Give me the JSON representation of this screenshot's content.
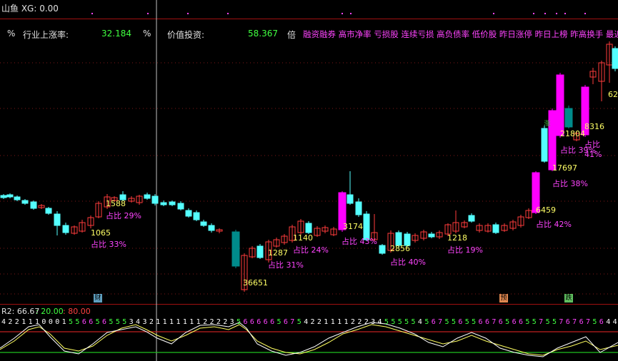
{
  "header": {
    "title": "山鱼 XG: 0.00",
    "pct_symbol_1": "%",
    "industry_label": "行业上涨率:",
    "industry_value": "32.184",
    "pct_symbol_2": "%",
    "value_label": "价值投资:",
    "value_value": "58.367",
    "times_label": "倍",
    "tags": "融资融券 高市净率 亏损股 连续亏损 高负债率 低价股 昨日涨停 昨日上榜 昨高换手 最近多板"
  },
  "annotations": [
    {
      "num": "1065",
      "pct": "占比 33%"
    },
    {
      "num": "1588",
      "pct": "占比 29%"
    },
    {
      "num": "36651",
      "pct": ""
    },
    {
      "num": "1287",
      "pct": "占比 31%"
    },
    {
      "num": "1140",
      "pct": "占比 24%"
    },
    {
      "num": "3174",
      "pct": "占比 43%"
    },
    {
      "num": "2856",
      "pct": "占比 40%"
    },
    {
      "num": "1218",
      "pct": "占比 19%"
    },
    {
      "num": "6459",
      "pct": "占比 42%"
    },
    {
      "num": "17697",
      "pct": "占比 38%"
    },
    {
      "num": "21804",
      "pct": "占比 39%"
    },
    {
      "num": "8316",
      "pct": "占比 41%"
    },
    {
      "num": "62",
      "pct": ""
    }
  ],
  "badges": [
    {
      "text": "财",
      "color": "#5fa0c0"
    },
    {
      "text": "预",
      "color": "#e08850"
    },
    {
      "text": "跌",
      "color": "#60c060"
    },
    {
      "text": "涨",
      "color": "#3cc03c"
    }
  ],
  "indicator": {
    "r2_label": "R2: 66.67",
    "level1": ": 20.00",
    "level2": ": 80.00",
    "digits": "4 2 2 1 1 1 0 0 0 1 5 5 6 6 5 6 5 5 5 3 4 3 2 1 1 1 1 1 1 1 2 2 2 2 3 5 6 6 6 6 6 5 6 7 5 4 2 2 1 1 1 1 2 2 2 3 4 5 5 5 5 5 4 5 6 7 5 5 6 5 5 6 6 7 6 5 6 6 5 5 7 5 5 7 6 7 6 7 5 6 4 4"
  },
  "colors": {
    "up": "#ff3c3c",
    "down": "#54ffff",
    "big_up": "#ff00ff",
    "big_down": "#008b8b",
    "line_yellow": "#ffff60",
    "line_white": "#ffffff",
    "ref_red": "#c02020",
    "ref_green": "#20c020"
  }
}
